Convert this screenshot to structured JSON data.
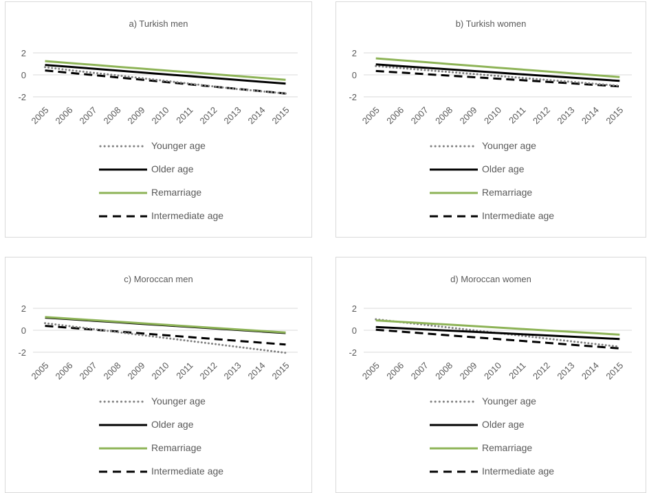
{
  "colors": {
    "younger": "#7f7f7f",
    "older": "#000000",
    "remarriage": "#8db356",
    "intermediate": "#000000",
    "gridline": "#d9d9d9",
    "text": "#595959"
  },
  "legend": [
    {
      "key": "younger",
      "label": "Younger age",
      "style": "dotted"
    },
    {
      "key": "older",
      "label": "Older age",
      "style": "solid"
    },
    {
      "key": "remarriage",
      "label": "Remarriage",
      "style": "solid"
    },
    {
      "key": "intermediate",
      "label": "Intermediate age",
      "style": "dashed"
    }
  ],
  "chart_data": [
    {
      "type": "line",
      "title": "a) Turkish men",
      "categories": [
        "2005",
        "2006",
        "2007",
        "2008",
        "2009",
        "2010",
        "2011",
        "2012",
        "2013",
        "2014",
        "2015"
      ],
      "ylim": [
        -2,
        2
      ],
      "yticks": [
        "2",
        "0",
        "-2"
      ],
      "grid": true,
      "legend_position": "bottom",
      "series": [
        {
          "name": "Younger age",
          "key": "younger",
          "style": "dotted",
          "values": [
            0.7,
            0.43,
            0.19,
            -0.05,
            -0.3,
            -0.55,
            -0.8,
            -1.05,
            -1.3,
            -1.5,
            -1.7
          ]
        },
        {
          "name": "Older age",
          "key": "older",
          "style": "solid",
          "values": [
            0.9,
            0.73,
            0.56,
            0.39,
            0.22,
            0.05,
            -0.12,
            -0.29,
            -0.46,
            -0.63,
            -0.8
          ]
        },
        {
          "name": "Remarriage",
          "key": "remarriage",
          "style": "solid",
          "values": [
            1.25,
            1.08,
            0.91,
            0.74,
            0.57,
            0.4,
            0.23,
            0.06,
            -0.11,
            -0.28,
            -0.45
          ]
        },
        {
          "name": "Intermediate age",
          "key": "intermediate",
          "style": "dashed",
          "values": [
            0.4,
            0.19,
            -0.02,
            -0.23,
            -0.44,
            -0.65,
            -0.86,
            -1.07,
            -1.28,
            -1.49,
            -1.7
          ]
        }
      ]
    },
    {
      "type": "line",
      "title": "b) Turkish women",
      "categories": [
        "2005",
        "2006",
        "2007",
        "2008",
        "2009",
        "2010",
        "2011",
        "2012",
        "2013",
        "2014",
        "2015"
      ],
      "ylim": [
        -2,
        2
      ],
      "yticks": [
        "2",
        "0",
        "-2"
      ],
      "grid": true,
      "legend_position": "bottom",
      "series": [
        {
          "name": "Younger age",
          "key": "younger",
          "style": "dotted",
          "values": [
            0.8,
            0.62,
            0.44,
            0.26,
            0.08,
            -0.1,
            -0.28,
            -0.46,
            -0.64,
            -0.82,
            -1.0
          ]
        },
        {
          "name": "Older age",
          "key": "older",
          "style": "solid",
          "values": [
            0.95,
            0.8,
            0.65,
            0.5,
            0.35,
            0.2,
            0.05,
            -0.1,
            -0.25,
            -0.4,
            -0.55
          ]
        },
        {
          "name": "Remarriage",
          "key": "remarriage",
          "style": "solid",
          "values": [
            1.5,
            1.33,
            1.16,
            0.99,
            0.82,
            0.65,
            0.48,
            0.31,
            0.14,
            -0.03,
            -0.2
          ]
        },
        {
          "name": "Intermediate age",
          "key": "intermediate",
          "style": "dashed",
          "values": [
            0.35,
            0.21,
            0.07,
            -0.07,
            -0.21,
            -0.35,
            -0.49,
            -0.63,
            -0.77,
            -0.91,
            -1.05
          ]
        }
      ]
    },
    {
      "type": "line",
      "title": "c)  Moroccan men",
      "categories": [
        "2005",
        "2006",
        "2007",
        "2008",
        "2009",
        "2010",
        "2011",
        "2012",
        "2013",
        "2014",
        "2015"
      ],
      "ylim": [
        -2,
        2
      ],
      "yticks": [
        "2",
        "0",
        "-2"
      ],
      "grid": true,
      "legend_position": "bottom",
      "series": [
        {
          "name": "Younger age",
          "key": "younger",
          "style": "dotted",
          "values": [
            0.65,
            0.38,
            0.11,
            -0.16,
            -0.43,
            -0.7,
            -0.97,
            -1.24,
            -1.51,
            -1.78,
            -2.05
          ]
        },
        {
          "name": "Older age",
          "key": "older",
          "style": "solid",
          "values": [
            1.15,
            1.01,
            0.87,
            0.73,
            0.59,
            0.45,
            0.31,
            0.17,
            0.03,
            -0.11,
            -0.25
          ]
        },
        {
          "name": "Remarriage",
          "key": "remarriage",
          "style": "solid",
          "values": [
            1.2,
            1.06,
            0.92,
            0.78,
            0.64,
            0.5,
            0.36,
            0.22,
            0.08,
            -0.06,
            -0.2
          ]
        },
        {
          "name": "Intermediate age",
          "key": "intermediate",
          "style": "dashed",
          "values": [
            0.4,
            0.23,
            0.06,
            -0.11,
            -0.28,
            -0.45,
            -0.62,
            -0.79,
            -0.96,
            -1.13,
            -1.3
          ]
        }
      ]
    },
    {
      "type": "line",
      "title": "d) Moroccan women",
      "categories": [
        "2005",
        "2006",
        "2007",
        "2008",
        "2009",
        "2010",
        "2011",
        "2012",
        "2013",
        "2014",
        "2015"
      ],
      "ylim": [
        -2,
        2
      ],
      "yticks": [
        "2",
        "0",
        "-2"
      ],
      "grid": true,
      "legend_position": "bottom",
      "series": [
        {
          "name": "Younger age",
          "key": "younger",
          "style": "dotted",
          "values": [
            1.0,
            0.75,
            0.5,
            0.25,
            0.0,
            -0.25,
            -0.5,
            -0.75,
            -1.0,
            -1.25,
            -1.5
          ]
        },
        {
          "name": "Older age",
          "key": "older",
          "style": "solid",
          "values": [
            0.3,
            0.19,
            0.08,
            -0.03,
            -0.14,
            -0.25,
            -0.36,
            -0.47,
            -0.58,
            -0.69,
            -0.8
          ]
        },
        {
          "name": "Remarriage",
          "key": "remarriage",
          "style": "solid",
          "values": [
            0.9,
            0.77,
            0.64,
            0.51,
            0.38,
            0.25,
            0.12,
            -0.01,
            -0.14,
            -0.27,
            -0.4
          ]
        },
        {
          "name": "Intermediate age",
          "key": "intermediate",
          "style": "dashed",
          "values": [
            0.05,
            -0.12,
            -0.29,
            -0.46,
            -0.63,
            -0.8,
            -0.97,
            -1.14,
            -1.31,
            -1.48,
            -1.65
          ]
        }
      ]
    }
  ]
}
